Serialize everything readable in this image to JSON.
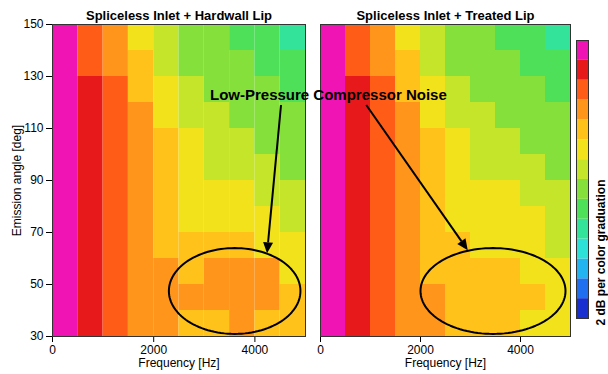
{
  "chart_data": [
    {
      "type": "heatmap",
      "title": "Spliceless Inlet + Hardwall Lip",
      "x_label": "Frequency [Hz]",
      "y_label": "Emission angle [deg]",
      "xlim": [
        0,
        5000
      ],
      "ylim": [
        30,
        150
      ],
      "xticks": [
        0,
        2000,
        4000
      ],
      "yticks": [
        30,
        50,
        70,
        90,
        110,
        130,
        150
      ],
      "grid": false,
      "x_edges": [
        0,
        500,
        1000,
        1500,
        2000,
        2500,
        3000,
        3500,
        4000,
        4500,
        5000
      ],
      "y_edges": [
        30,
        40,
        50,
        60,
        70,
        80,
        90,
        100,
        110,
        120,
        130,
        140,
        150
      ],
      "cells": [
        [
          27,
          24,
          22,
          21,
          20,
          19,
          19,
          20,
          19,
          18
        ],
        [
          27,
          24,
          22,
          21,
          20,
          20,
          20,
          21,
          20,
          18
        ],
        [
          27,
          25,
          22,
          21,
          20,
          19,
          20,
          20,
          20,
          17
        ],
        [
          27,
          25,
          22,
          21,
          19,
          18,
          18,
          18,
          17,
          16
        ],
        [
          27,
          25,
          23,
          21,
          19,
          17,
          17,
          16,
          16,
          15
        ],
        [
          27,
          25,
          23,
          21,
          19,
          17,
          16,
          16,
          15,
          14
        ],
        [
          27,
          25,
          23,
          21,
          18,
          17,
          15,
          15,
          14,
          13
        ],
        [
          27,
          25,
          23,
          20,
          18,
          16,
          15,
          14,
          13,
          13
        ],
        [
          27,
          24,
          22,
          20,
          17,
          15,
          14,
          13,
          13,
          12
        ],
        [
          27,
          24,
          22,
          19,
          16,
          14,
          13,
          12,
          12,
          11
        ],
        [
          26,
          23,
          21,
          18,
          15,
          13,
          12,
          12,
          11,
          10
        ],
        [
          26,
          23,
          20,
          17,
          14,
          13,
          12,
          11,
          10,
          9
        ]
      ],
      "annotation": "Low-Pressure Compressor Noise",
      "region": {
        "x": [
          2300,
          4900
        ],
        "y": [
          31,
          64
        ]
      }
    },
    {
      "type": "heatmap",
      "title": "Spliceless Inlet + Treated Lip",
      "x_label": "Frequency [Hz]",
      "xlim": [
        0,
        5000
      ],
      "ylim": [
        30,
        150
      ],
      "xticks": [
        0,
        2000,
        4000
      ],
      "yticks": [
        30,
        50,
        70,
        90,
        110,
        130,
        150
      ],
      "tick_labels": "x",
      "grid": false,
      "x_edges": [
        0,
        500,
        1000,
        1500,
        2000,
        2500,
        3000,
        3500,
        4000,
        4500,
        5000
      ],
      "y_edges": [
        30,
        40,
        50,
        60,
        70,
        80,
        90,
        100,
        110,
        120,
        130,
        140,
        150
      ],
      "cells": [
        [
          27,
          24,
          22,
          21,
          20,
          19,
          18,
          18,
          17,
          16
        ],
        [
          27,
          24,
          22,
          21,
          20,
          19,
          18,
          19,
          18,
          16
        ],
        [
          27,
          25,
          22,
          21,
          19,
          18,
          18,
          18,
          17,
          16
        ],
        [
          27,
          25,
          22,
          21,
          19,
          18,
          17,
          17,
          16,
          15
        ],
        [
          27,
          25,
          23,
          21,
          19,
          17,
          17,
          16,
          16,
          15
        ],
        [
          27,
          25,
          23,
          21,
          19,
          17,
          16,
          16,
          15,
          14
        ],
        [
          27,
          25,
          23,
          21,
          18,
          17,
          15,
          15,
          14,
          13
        ],
        [
          27,
          25,
          23,
          20,
          18,
          16,
          15,
          14,
          13,
          13
        ],
        [
          27,
          24,
          22,
          20,
          17,
          15,
          14,
          13,
          13,
          12
        ],
        [
          27,
          24,
          22,
          19,
          16,
          14,
          13,
          12,
          12,
          11
        ],
        [
          26,
          23,
          21,
          18,
          15,
          13,
          12,
          12,
          11,
          10
        ],
        [
          26,
          23,
          20,
          17,
          14,
          13,
          12,
          11,
          10,
          9
        ]
      ],
      "region": {
        "x": [
          2000,
          4900
        ],
        "y": [
          31,
          64
        ]
      },
      "colorbar": {
        "label": "2 dB per color graduation",
        "range": [
          0,
          28
        ],
        "step": 2
      }
    }
  ]
}
